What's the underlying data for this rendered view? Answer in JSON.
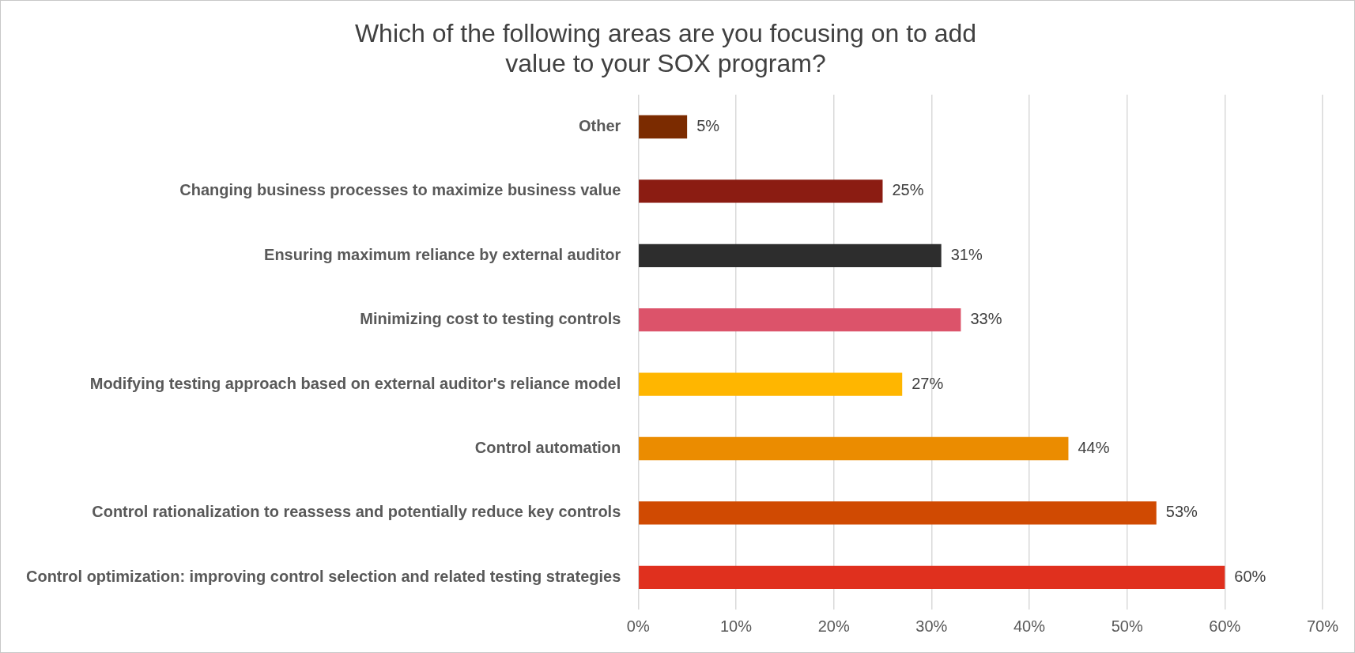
{
  "chart_data": {
    "type": "bar",
    "orientation": "horizontal",
    "title": "Which of the following areas are you focusing on to add value to your SOX program?",
    "categories": [
      "Other",
      "Changing business processes to maximize business value",
      "Ensuring maximum reliance by external auditor",
      "Minimizing cost to testing controls",
      "Modifying testing approach based on external auditor's reliance model",
      "Control automation",
      "Control rationalization to reassess and potentially reduce key controls",
      "Control optimization: improving control selection and related testing strategies"
    ],
    "values": [
      5,
      25,
      31,
      33,
      27,
      44,
      53,
      60
    ],
    "value_labels": [
      "5%",
      "25%",
      "31%",
      "33%",
      "27%",
      "44%",
      "53%",
      "60%"
    ],
    "colors": [
      "#7b2b00",
      "#8b1c12",
      "#2d2d2d",
      "#dc536a",
      "#ffb600",
      "#eb8c00",
      "#d04a02",
      "#e0301e"
    ],
    "xlim": [
      0,
      70
    ],
    "xticks": [
      {
        "value": 0,
        "label": "0%"
      },
      {
        "value": 10,
        "label": "10%"
      },
      {
        "value": 20,
        "label": "20%"
      },
      {
        "value": 30,
        "label": "30%"
      },
      {
        "value": 40,
        "label": "40%"
      },
      {
        "value": 50,
        "label": "50%"
      },
      {
        "value": 60,
        "label": "60%"
      },
      {
        "value": 70,
        "label": "70%"
      }
    ],
    "grid": "x",
    "legend": false
  }
}
